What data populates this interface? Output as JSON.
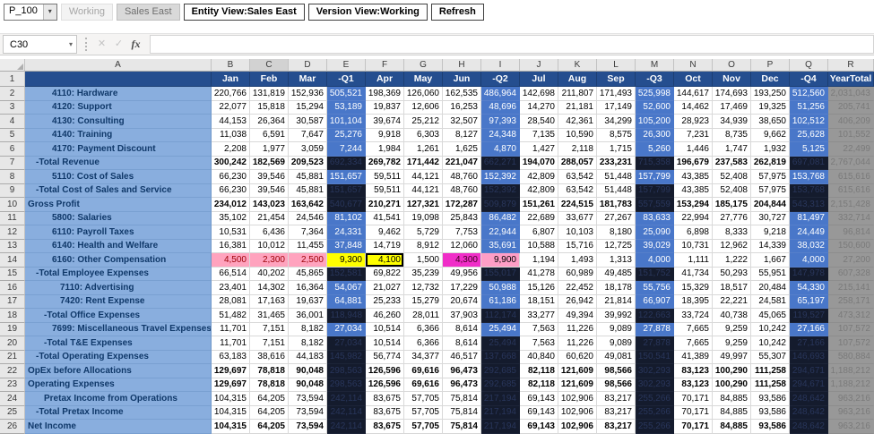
{
  "toolbar": {
    "pov_dropdown": "P_100",
    "buttons": [
      "Working",
      "Sales East",
      "Entity View:Sales East",
      "Version View:Working",
      "Refresh"
    ]
  },
  "formula_bar": {
    "name_box": "C30",
    "icons": {
      "dropdown": "▾",
      "cancel": "✕",
      "enter": "✓",
      "fx": "fx"
    }
  },
  "grid": {
    "selected_column_letter": "C",
    "column_letters": [
      "A",
      "B",
      "C",
      "D",
      "E",
      "F",
      "G",
      "H",
      "I",
      "J",
      "K",
      "L",
      "M",
      "N",
      "O",
      "P",
      "Q",
      "R"
    ],
    "month_header": [
      "Jan",
      "Feb",
      "Mar",
      "-Q1",
      "Apr",
      "May",
      "Jun",
      "-Q2",
      "Jul",
      "Aug",
      "Sep",
      "-Q3",
      "Oct",
      "Nov",
      "Dec",
      "-Q4",
      "YearTotal"
    ],
    "rows": [
      {
        "n": 2,
        "label": "4110: Hardware",
        "indent": 3,
        "total": false,
        "bold": false,
        "cells": [
          "220,766",
          "131,819",
          "152,936",
          "505,521",
          "198,369",
          "126,060",
          "162,535",
          "486,964",
          "142,698",
          "211,807",
          "171,493",
          "525,998",
          "144,617",
          "174,693",
          "193,250",
          "512,560",
          "2,031,043"
        ]
      },
      {
        "n": 3,
        "label": "4120: Support",
        "indent": 3,
        "total": false,
        "bold": false,
        "cells": [
          "22,077",
          "15,818",
          "15,294",
          "53,189",
          "19,837",
          "12,606",
          "16,253",
          "48,696",
          "14,270",
          "21,181",
          "17,149",
          "52,600",
          "14,462",
          "17,469",
          "19,325",
          "51,256",
          "205,741"
        ]
      },
      {
        "n": 4,
        "label": "4130: Consulting",
        "indent": 3,
        "total": false,
        "bold": false,
        "cells": [
          "44,153",
          "26,364",
          "30,587",
          "101,104",
          "39,674",
          "25,212",
          "32,507",
          "97,393",
          "28,540",
          "42,361",
          "34,299",
          "105,200",
          "28,923",
          "34,939",
          "38,650",
          "102,512",
          "406,209"
        ]
      },
      {
        "n": 5,
        "label": "4140: Training",
        "indent": 3,
        "total": false,
        "bold": false,
        "cells": [
          "11,038",
          "6,591",
          "7,647",
          "25,276",
          "9,918",
          "6,303",
          "8,127",
          "24,348",
          "7,135",
          "10,590",
          "8,575",
          "26,300",
          "7,231",
          "8,735",
          "9,662",
          "25,628",
          "101,552"
        ]
      },
      {
        "n": 6,
        "label": "4170: Payment Discount",
        "indent": 3,
        "total": false,
        "bold": false,
        "cells": [
          "2,208",
          "1,977",
          "3,059",
          "7,244",
          "1,984",
          "1,261",
          "1,625",
          "4,870",
          "1,427",
          "2,118",
          "1,715",
          "5,260",
          "1,446",
          "1,747",
          "1,932",
          "5,125",
          "22,499"
        ]
      },
      {
        "n": 7,
        "label": "-Total Revenue",
        "indent": 1,
        "total": true,
        "bold": true,
        "cells": [
          "300,242",
          "182,569",
          "209,523",
          "692,334",
          "269,782",
          "171,442",
          "221,047",
          "662,271",
          "194,070",
          "288,057",
          "233,231",
          "715,358",
          "196,679",
          "237,583",
          "262,819",
          "697,081",
          "2,767,044"
        ]
      },
      {
        "n": 8,
        "label": "5110: Cost of Sales",
        "indent": 3,
        "total": false,
        "bold": false,
        "cells": [
          "66,230",
          "39,546",
          "45,881",
          "151,657",
          "59,511",
          "44,121",
          "48,760",
          "152,392",
          "42,809",
          "63,542",
          "51,448",
          "157,799",
          "43,385",
          "52,408",
          "57,975",
          "153,768",
          "615,616"
        ]
      },
      {
        "n": 9,
        "label": "-Total Cost of Sales and Service",
        "indent": 1,
        "total": true,
        "bold": false,
        "cells": [
          "66,230",
          "39,546",
          "45,881",
          "151,657",
          "59,511",
          "44,121",
          "48,760",
          "152,392",
          "42,809",
          "63,542",
          "51,448",
          "157,799",
          "43,385",
          "52,408",
          "57,975",
          "153,768",
          "615,616"
        ]
      },
      {
        "n": 10,
        "label": "Gross Profit",
        "indent": 0,
        "total": true,
        "bold": true,
        "cells": [
          "234,012",
          "143,023",
          "163,642",
          "540,677",
          "210,271",
          "127,321",
          "172,287",
          "509,879",
          "151,261",
          "224,515",
          "181,783",
          "557,559",
          "153,294",
          "185,175",
          "204,844",
          "543,313",
          "2,151,428"
        ]
      },
      {
        "n": 11,
        "label": "5800: Salaries",
        "indent": 3,
        "total": false,
        "bold": false,
        "cells": [
          "35,102",
          "21,454",
          "24,546",
          "81,102",
          "41,541",
          "19,098",
          "25,843",
          "86,482",
          "22,689",
          "33,677",
          "27,267",
          "83,633",
          "22,994",
          "27,776",
          "30,727",
          "81,497",
          "332,714"
        ]
      },
      {
        "n": 12,
        "label": "6110: Payroll Taxes",
        "indent": 3,
        "total": false,
        "bold": false,
        "cells": [
          "10,531",
          "6,436",
          "7,364",
          "24,331",
          "9,462",
          "5,729",
          "7,753",
          "22,944",
          "6,807",
          "10,103",
          "8,180",
          "25,090",
          "6,898",
          "8,333",
          "9,218",
          "24,449",
          "96,814"
        ]
      },
      {
        "n": 13,
        "label": "6140: Health and Welfare",
        "indent": 3,
        "total": false,
        "bold": false,
        "cells": [
          "16,381",
          "10,012",
          "11,455",
          "37,848",
          "14,719",
          "8,912",
          "12,060",
          "35,691",
          "10,588",
          "15,716",
          "12,725",
          "39,029",
          "10,731",
          "12,962",
          "14,339",
          "38,032",
          "150,600"
        ]
      },
      {
        "n": 14,
        "label": "6160: Other Compensation",
        "indent": 3,
        "total": false,
        "bold": false,
        "hl": {
          "0": "pink",
          "1": "pink",
          "2": "pink",
          "3": "yellow",
          "4": "yellow sel",
          "6": "magenta",
          "7": "pinkq"
        },
        "cells": [
          "4,500",
          "2,300",
          "2,500",
          "9,300",
          "4,100",
          "1,500",
          "4,300",
          "9,900",
          "1,194",
          "1,493",
          "1,313",
          "4,000",
          "1,111",
          "1,222",
          "1,667",
          "4,000",
          "27,200"
        ]
      },
      {
        "n": 15,
        "label": "-Total Employee Expenses",
        "indent": 1,
        "total": true,
        "bold": false,
        "cells": [
          "66,514",
          "40,202",
          "45,865",
          "152,581",
          "69,822",
          "35,239",
          "49,956",
          "155,017",
          "41,278",
          "60,989",
          "49,485",
          "151,752",
          "41,734",
          "50,293",
          "55,951",
          "147,978",
          "607,328"
        ]
      },
      {
        "n": 16,
        "label": "7110: Advertising",
        "indent": 4,
        "total": false,
        "bold": false,
        "cells": [
          "23,401",
          "14,302",
          "16,364",
          "54,067",
          "21,027",
          "12,732",
          "17,229",
          "50,988",
          "15,126",
          "22,452",
          "18,178",
          "55,756",
          "15,329",
          "18,517",
          "20,484",
          "54,330",
          "215,141"
        ]
      },
      {
        "n": 17,
        "label": "7420: Rent Expense",
        "indent": 4,
        "total": false,
        "bold": false,
        "cells": [
          "28,081",
          "17,163",
          "19,637",
          "64,881",
          "25,233",
          "15,279",
          "20,674",
          "61,186",
          "18,151",
          "26,942",
          "21,814",
          "66,907",
          "18,395",
          "22,221",
          "24,581",
          "65,197",
          "258,171"
        ]
      },
      {
        "n": 18,
        "label": "-Total Office Expenses",
        "indent": 2,
        "total": true,
        "bold": false,
        "cells": [
          "51,482",
          "31,465",
          "36,001",
          "118,948",
          "46,260",
          "28,011",
          "37,903",
          "112,174",
          "33,277",
          "49,394",
          "39,992",
          "122,663",
          "33,724",
          "40,738",
          "45,065",
          "119,527",
          "473,312"
        ]
      },
      {
        "n": 19,
        "label": "7699: Miscellaneous Travel Expenses",
        "indent": 3,
        "total": false,
        "bold": false,
        "cells": [
          "11,701",
          "7,151",
          "8,182",
          "27,034",
          "10,514",
          "6,366",
          "8,614",
          "25,494",
          "7,563",
          "11,226",
          "9,089",
          "27,878",
          "7,665",
          "9,259",
          "10,242",
          "27,166",
          "107,572"
        ]
      },
      {
        "n": 20,
        "label": "-Total T&E Expenses",
        "indent": 2,
        "total": true,
        "bold": false,
        "cells": [
          "11,701",
          "7,151",
          "8,182",
          "27,034",
          "10,514",
          "6,366",
          "8,614",
          "25,494",
          "7,563",
          "11,226",
          "9,089",
          "27,878",
          "7,665",
          "9,259",
          "10,242",
          "27,166",
          "107,572"
        ]
      },
      {
        "n": 21,
        "label": "-Total Operating Expenses",
        "indent": 1,
        "total": true,
        "bold": false,
        "cells": [
          "63,183",
          "38,616",
          "44,183",
          "145,982",
          "56,774",
          "34,377",
          "46,517",
          "137,668",
          "40,840",
          "60,620",
          "49,081",
          "150,541",
          "41,389",
          "49,997",
          "55,307",
          "146,693",
          "580,884"
        ]
      },
      {
        "n": 22,
        "label": "OpEx before Allocations",
        "indent": 0,
        "total": true,
        "bold": true,
        "cells": [
          "129,697",
          "78,818",
          "90,048",
          "298,563",
          "126,596",
          "69,616",
          "96,473",
          "292,685",
          "82,118",
          "121,609",
          "98,566",
          "302,293",
          "83,123",
          "100,290",
          "111,258",
          "294,671",
          "1,188,212"
        ]
      },
      {
        "n": 23,
        "label": "Operating Expenses",
        "indent": 0,
        "total": true,
        "bold": true,
        "cells": [
          "129,697",
          "78,818",
          "90,048",
          "298,563",
          "126,596",
          "69,616",
          "96,473",
          "292,685",
          "82,118",
          "121,609",
          "98,566",
          "302,293",
          "83,123",
          "100,290",
          "111,258",
          "294,671",
          "1,188,212"
        ]
      },
      {
        "n": 24,
        "label": "Pretax Income from Operations",
        "indent": 2,
        "total": true,
        "bold": false,
        "cells": [
          "104,315",
          "64,205",
          "73,594",
          "242,114",
          "83,675",
          "57,705",
          "75,814",
          "217,194",
          "69,143",
          "102,906",
          "83,217",
          "255,266",
          "70,171",
          "84,885",
          "93,586",
          "248,642",
          "963,216"
        ]
      },
      {
        "n": 25,
        "label": "-Total Pretax Income",
        "indent": 1,
        "total": true,
        "bold": false,
        "cells": [
          "104,315",
          "64,205",
          "73,594",
          "242,114",
          "83,675",
          "57,705",
          "75,814",
          "217,194",
          "69,143",
          "102,906",
          "83,217",
          "255,266",
          "70,171",
          "84,885",
          "93,586",
          "248,642",
          "963,216"
        ]
      },
      {
        "n": 26,
        "label": "Net Income",
        "indent": 0,
        "total": true,
        "bold": true,
        "cells": [
          "104,315",
          "64,205",
          "73,594",
          "242,114",
          "83,675",
          "57,705",
          "75,814",
          "217,194",
          "69,143",
          "102,906",
          "83,217",
          "255,266",
          "70,171",
          "84,885",
          "93,586",
          "248,642",
          "963,216"
        ]
      }
    ]
  }
}
